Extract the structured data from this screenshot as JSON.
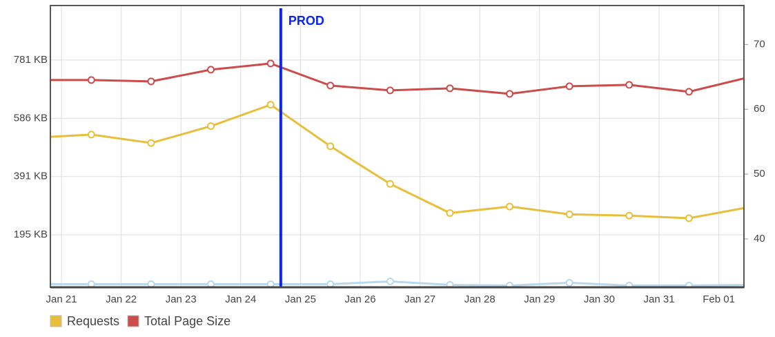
{
  "chart_data": {
    "type": "line",
    "x": [
      -0.5,
      0.5,
      1.5,
      2.5,
      3.5,
      4.5,
      5.5,
      6.5,
      7.5,
      8.5,
      9.5,
      10.5,
      11.5
    ],
    "xlim": [
      -0.185,
      11.42
    ],
    "xticks": [
      {
        "value": 0,
        "label": "Jan 21"
      },
      {
        "value": 1,
        "label": "Jan 22"
      },
      {
        "value": 2,
        "label": "Jan 23"
      },
      {
        "value": 3,
        "label": "Jan 24"
      },
      {
        "value": 4,
        "label": "Jan 25"
      },
      {
        "value": 5,
        "label": "Jan 26"
      },
      {
        "value": 6,
        "label": "Jan 27"
      },
      {
        "value": 7,
        "label": "Jan 28"
      },
      {
        "value": 8,
        "label": "Jan 29"
      },
      {
        "value": 9,
        "label": "Jan 30"
      },
      {
        "value": 10,
        "label": "Jan 31"
      },
      {
        "value": 11,
        "label": "Feb 01"
      }
    ],
    "ylim": [
      19.6,
      963.9
    ],
    "yticks": [
      {
        "value": 195.3125,
        "label": "195 KB"
      },
      {
        "value": 390.625,
        "label": "391 KB"
      },
      {
        "value": 585.9375,
        "label": "586 KB"
      },
      {
        "value": 781.25,
        "label": "781 KB"
      }
    ],
    "y2lim": [
      32.55,
      76
    ],
    "y2ticks": [
      40,
      50,
      60,
      70
    ],
    "grid": true,
    "legend": "bottom-left",
    "series": [
      {
        "name": "Requests",
        "color": "#e8bf3c",
        "axis": "y2",
        "values": [
          55.6,
          56.1,
          54.8,
          57.4,
          60.7,
          54.3,
          48.5,
          44.0,
          45.0,
          43.8,
          43.6,
          43.2,
          44.9
        ]
      },
      {
        "name": "Total Page Size",
        "color": "#cc4b4b",
        "values": [
          714.2,
          714.2,
          709.6,
          748.9,
          769.7,
          695.7,
          679.5,
          686.5,
          667.9,
          693.4,
          698.0,
          674.9,
          723.5
        ]
      },
      {
        "color": "#b8d8f0",
        "values": [
          30.0,
          30.0,
          30.0,
          30.0,
          30.0,
          30.0,
          39.2,
          27.7,
          25.4,
          34.6,
          25.4,
          25.4,
          27.7
        ]
      }
    ],
    "annotations": [
      {
        "text": "PROD",
        "x": 3.67,
        "color": "#0a22ff"
      }
    ]
  }
}
